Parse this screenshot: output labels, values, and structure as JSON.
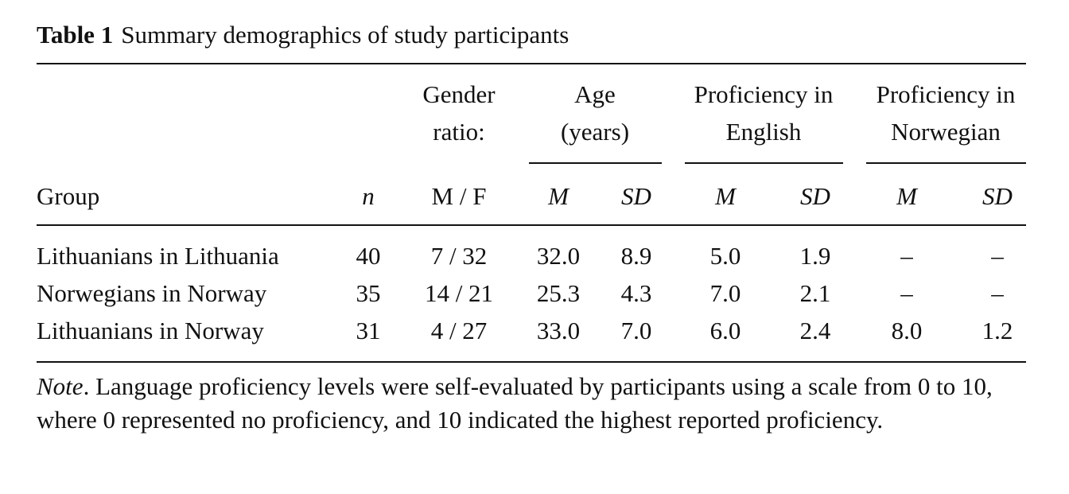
{
  "caption": {
    "label": "Table 1",
    "title": "Summary demographics of study participants"
  },
  "table": {
    "group_headers": [
      {
        "line1": "Gender",
        "line2": "ratio:"
      },
      {
        "line1": "Age",
        "line2": "(years)"
      },
      {
        "line1": "Proficiency in",
        "line2": "English"
      },
      {
        "line1": "Proficiency in",
        "line2": "Norwegian"
      }
    ],
    "sub_headers": {
      "group": "Group",
      "n": "n",
      "gender": "M / F",
      "age_m": "M",
      "age_sd": "SD",
      "eng_m": "M",
      "eng_sd": "SD",
      "nor_m": "M",
      "nor_sd": "SD"
    },
    "rows": [
      {
        "group": "Lithuanians in Lithuania",
        "n": "40",
        "gender": "7 / 32",
        "age_m": "32.0",
        "age_sd": "8.9",
        "eng_m": "5.0",
        "eng_sd": "1.9",
        "nor_m": "–",
        "nor_sd": "–"
      },
      {
        "group": "Norwegians in Norway",
        "n": "35",
        "gender": "14 / 21",
        "age_m": "25.3",
        "age_sd": "4.3",
        "eng_m": "7.0",
        "eng_sd": "2.1",
        "nor_m": "–",
        "nor_sd": "–"
      },
      {
        "group": "Lithuanians in Norway",
        "n": "31",
        "gender": "4 / 27",
        "age_m": "33.0",
        "age_sd": "7.0",
        "eng_m": "6.0",
        "eng_sd": "2.4",
        "nor_m": "8.0",
        "nor_sd": "1.2"
      }
    ]
  },
  "note": {
    "label": "Note",
    "text": ". Language proficiency levels were self-evaluated by participants using a scale from 0 to 10, where 0 represented no proficiency, and 10 indicated the highest reported pro­ficiency."
  }
}
